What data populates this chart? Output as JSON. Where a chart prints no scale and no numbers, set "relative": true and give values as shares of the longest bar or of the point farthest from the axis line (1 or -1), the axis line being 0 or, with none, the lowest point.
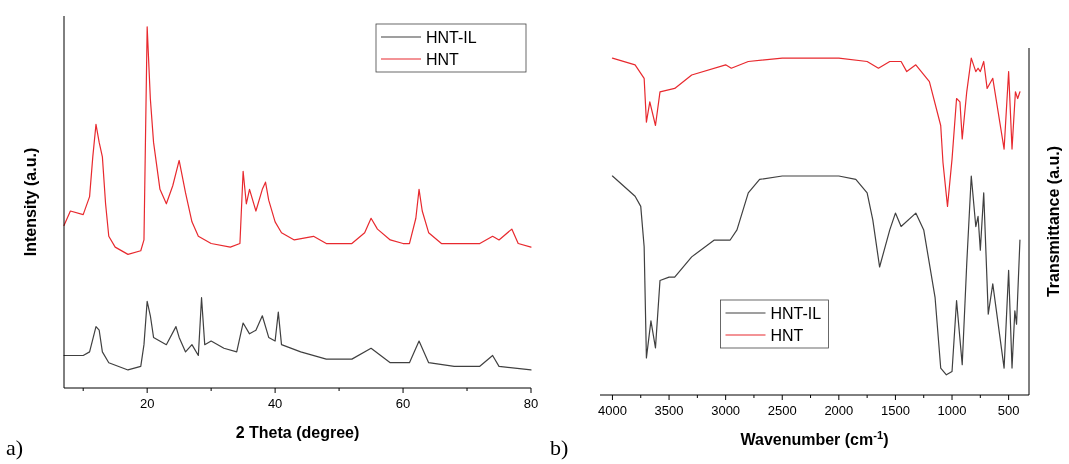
{
  "chart_data": [
    {
      "type": "line",
      "relative": true,
      "xlabel": "2 Theta (degree)",
      "ylabel": "Intensity (a.u.)",
      "xlim": [
        7,
        80
      ],
      "xticks": [
        {
          "value": 10,
          "label": null
        },
        20,
        {
          "value": 30,
          "label": null
        },
        40,
        {
          "value": 50,
          "label": null
        },
        60,
        {
          "value": 70,
          "label": null
        },
        80
      ],
      "legend": "top right",
      "annotations": [
        "a)"
      ],
      "series": [
        {
          "name": "HNT-IL",
          "color": "#404040",
          "x": [
            7,
            10,
            11,
            12,
            12.5,
            13,
            14,
            17,
            19,
            19.5,
            20,
            20.5,
            21,
            23,
            24.5,
            25,
            26,
            27,
            28,
            28.5,
            29,
            30,
            32,
            34,
            35,
            36,
            37,
            38,
            39,
            40,
            40.5,
            41,
            44,
            48,
            52,
            55,
            58,
            61,
            62.5,
            64,
            68,
            72,
            74,
            75,
            80
          ],
          "values": [
            0.09,
            0.09,
            0.1,
            0.17,
            0.16,
            0.1,
            0.07,
            0.05,
            0.06,
            0.12,
            0.24,
            0.2,
            0.14,
            0.12,
            0.17,
            0.14,
            0.1,
            0.12,
            0.09,
            0.25,
            0.12,
            0.13,
            0.11,
            0.1,
            0.18,
            0.15,
            0.16,
            0.2,
            0.14,
            0.13,
            0.21,
            0.12,
            0.1,
            0.08,
            0.08,
            0.11,
            0.07,
            0.07,
            0.13,
            0.07,
            0.06,
            0.06,
            0.09,
            0.06,
            0.05
          ]
        },
        {
          "name": "HNT",
          "color": "#e8292e",
          "x": [
            7,
            8,
            10,
            11,
            11.5,
            12,
            12.5,
            13,
            13.5,
            14,
            15,
            17,
            19,
            19.5,
            20,
            20.5,
            21,
            22,
            23,
            24,
            25,
            26,
            27,
            28,
            30,
            33,
            34.5,
            35,
            35.5,
            36,
            37,
            38,
            38.5,
            39,
            40,
            41,
            43,
            46,
            48,
            52,
            54,
            55,
            56,
            58,
            60,
            61,
            62,
            62.5,
            63,
            64,
            66,
            70,
            72,
            74,
            75,
            77,
            78,
            80
          ],
          "values": [
            0.45,
            0.49,
            0.48,
            0.53,
            0.64,
            0.73,
            0.68,
            0.64,
            0.51,
            0.42,
            0.39,
            0.37,
            0.38,
            0.41,
            1,
            0.8,
            0.68,
            0.55,
            0.51,
            0.56,
            0.63,
            0.54,
            0.46,
            0.42,
            0.4,
            0.39,
            0.4,
            0.6,
            0.51,
            0.55,
            0.49,
            0.55,
            0.57,
            0.52,
            0.46,
            0.43,
            0.41,
            0.42,
            0.4,
            0.4,
            0.43,
            0.47,
            0.44,
            0.41,
            0.4,
            0.4,
            0.47,
            0.55,
            0.49,
            0.43,
            0.4,
            0.4,
            0.4,
            0.42,
            0.41,
            0.44,
            0.4,
            0.39
          ]
        }
      ]
    },
    {
      "type": "line",
      "relative": true,
      "xlabel": "Wavenumber (cm$^{-1}$)",
      "ylabel": "Transmittance (a.u.)",
      "xlim": [
        4110,
        320
      ],
      "xticks": [
        4000,
        {
          "value": 3750,
          "label": null
        },
        3500,
        {
          "value": 3250,
          "label": null
        },
        3000,
        {
          "value": 2750,
          "label": null
        },
        2500,
        {
          "value": 2250,
          "label": null
        },
        2000,
        {
          "value": 1750,
          "label": null
        },
        1500,
        {
          "value": 1250,
          "label": null
        },
        1000,
        {
          "value": 750,
          "label": null
        },
        500
      ],
      "legend": "bottom",
      "annotations": [
        "b)"
      ],
      "series": [
        {
          "name": "HNT-IL",
          "color": "#404040",
          "x": [
            4000,
            3800,
            3750,
            3720,
            3700,
            3660,
            3620,
            3580,
            3500,
            3450,
            3300,
            3100,
            2960,
            2900,
            2800,
            2700,
            2500,
            2000,
            1850,
            1750,
            1700,
            1640,
            1550,
            1500,
            1450,
            1320,
            1250,
            1150,
            1100,
            1050,
            1000,
            960,
            910,
            870,
            830,
            790,
            770,
            750,
            720,
            680,
            640,
            540,
            500,
            470,
            445,
            430,
            400
          ],
          "values": [
            0.65,
            0.59,
            0.56,
            0.44,
            0.11,
            0.22,
            0.14,
            0.34,
            0.35,
            0.35,
            0.41,
            0.46,
            0.46,
            0.49,
            0.6,
            0.64,
            0.65,
            0.65,
            0.64,
            0.6,
            0.52,
            0.38,
            0.49,
            0.54,
            0.5,
            0.54,
            0.49,
            0.29,
            0.08,
            0.06,
            0.07,
            0.28,
            0.09,
            0.39,
            0.65,
            0.5,
            0.53,
            0.43,
            0.6,
            0.24,
            0.33,
            0.08,
            0.37,
            0.08,
            0.25,
            0.21,
            0.46
          ]
        },
        {
          "name": "HNT",
          "color": "#e8292e",
          "x": [
            4000,
            3800,
            3720,
            3700,
            3670,
            3620,
            3580,
            3450,
            3300,
            3000,
            2950,
            2800,
            2500,
            2000,
            1750,
            1650,
            1550,
            1450,
            1400,
            1320,
            1200,
            1100,
            1080,
            1040,
            1000,
            960,
            930,
            910,
            870,
            830,
            790,
            770,
            750,
            720,
            690,
            640,
            540,
            500,
            470,
            440,
            420,
            400
          ],
          "values": [
            1.0,
            0.98,
            0.94,
            0.81,
            0.87,
            0.8,
            0.9,
            0.91,
            0.95,
            0.98,
            0.97,
            0.99,
            1.0,
            1.0,
            0.99,
            0.97,
            0.99,
            0.99,
            0.96,
            0.98,
            0.93,
            0.8,
            0.69,
            0.56,
            0.7,
            0.88,
            0.87,
            0.76,
            0.9,
            1.0,
            0.96,
            0.97,
            0.96,
            0.99,
            0.91,
            0.94,
            0.73,
            0.96,
            0.73,
            0.9,
            0.88,
            0.9
          ]
        }
      ]
    }
  ]
}
